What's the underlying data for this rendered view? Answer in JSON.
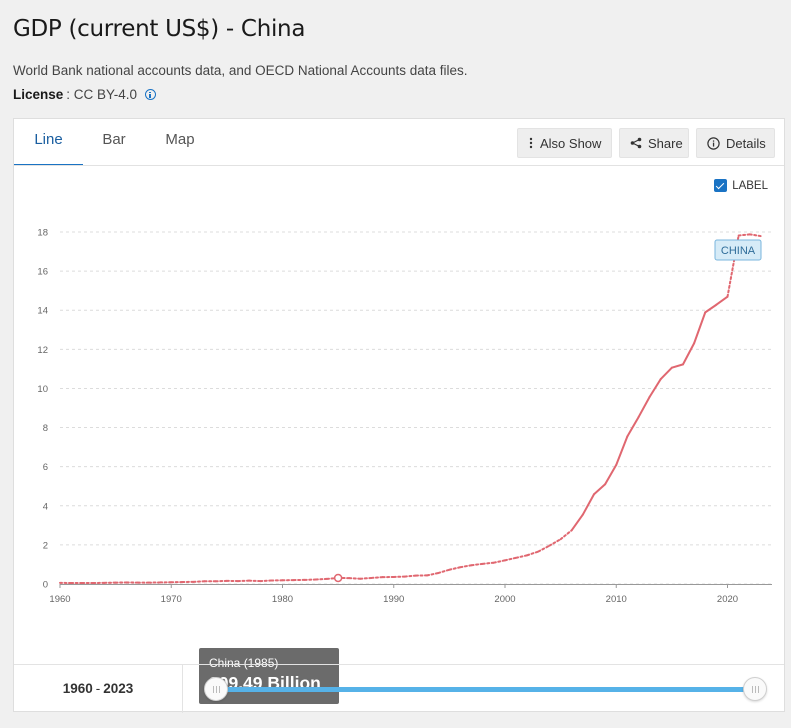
{
  "header": {
    "title": "GDP (current US$) - China",
    "description": "World Bank national accounts data, and OECD National Accounts data files.",
    "license_label": "License",
    "license_value": ": CC BY-4.0"
  },
  "tabs": [
    {
      "label": "Line",
      "active": true
    },
    {
      "label": "Bar",
      "active": false
    },
    {
      "label": "Map",
      "active": false
    }
  ],
  "toolbar": {
    "also_show": "Also Show",
    "share": "Share",
    "details": "Details"
  },
  "label_toggle": {
    "text": "LABEL",
    "checked": true
  },
  "tooltip": {
    "title": "China (1985)",
    "value": "309.49 Billion"
  },
  "range": {
    "start": "1960",
    "sep": "-",
    "end": "2023"
  },
  "colors": {
    "series": "#e06770",
    "accent": "#1a73c4",
    "slider": "#56b2e8"
  },
  "chart_data": {
    "type": "line",
    "series_label": "CHINA",
    "x_ticks": [
      1960,
      1970,
      1980,
      1990,
      2000,
      2010,
      2020
    ],
    "y_ticks": [
      0,
      2,
      4,
      6,
      8,
      10,
      12,
      14,
      16,
      18
    ],
    "xlim": [
      1960,
      2024
    ],
    "ylim": [
      0,
      18
    ],
    "grid": true,
    "highlight": {
      "x": 1985,
      "y": 0.309
    },
    "series": [
      {
        "name": "China",
        "x": [
          1960,
          1961,
          1962,
          1963,
          1964,
          1965,
          1966,
          1967,
          1968,
          1969,
          1970,
          1971,
          1972,
          1973,
          1974,
          1975,
          1976,
          1977,
          1978,
          1979,
          1980,
          1981,
          1982,
          1983,
          1984,
          1985,
          1986,
          1987,
          1988,
          1989,
          1990,
          1991,
          1992,
          1993,
          1994,
          1995,
          1996,
          1997,
          1998,
          1999,
          2000,
          2001,
          2002,
          2003,
          2004,
          2005,
          2006,
          2007,
          2008,
          2009,
          2010,
          2011,
          2012,
          2013,
          2014,
          2015,
          2016,
          2017,
          2018,
          2019,
          2020,
          2021,
          2022,
          2023
        ],
        "y": [
          0.06,
          0.05,
          0.05,
          0.05,
          0.06,
          0.07,
          0.08,
          0.07,
          0.07,
          0.08,
          0.09,
          0.1,
          0.11,
          0.14,
          0.14,
          0.16,
          0.15,
          0.17,
          0.15,
          0.18,
          0.19,
          0.2,
          0.21,
          0.23,
          0.26,
          0.31,
          0.3,
          0.27,
          0.31,
          0.35,
          0.36,
          0.38,
          0.43,
          0.44,
          0.56,
          0.73,
          0.86,
          0.96,
          1.03,
          1.09,
          1.21,
          1.34,
          1.47,
          1.66,
          1.96,
          2.29,
          2.75,
          3.55,
          4.59,
          5.1,
          6.09,
          7.55,
          8.53,
          9.57,
          10.48,
          11.06,
          11.23,
          12.31,
          13.89,
          14.28,
          14.69,
          17.82,
          17.88,
          17.79
        ]
      }
    ]
  }
}
